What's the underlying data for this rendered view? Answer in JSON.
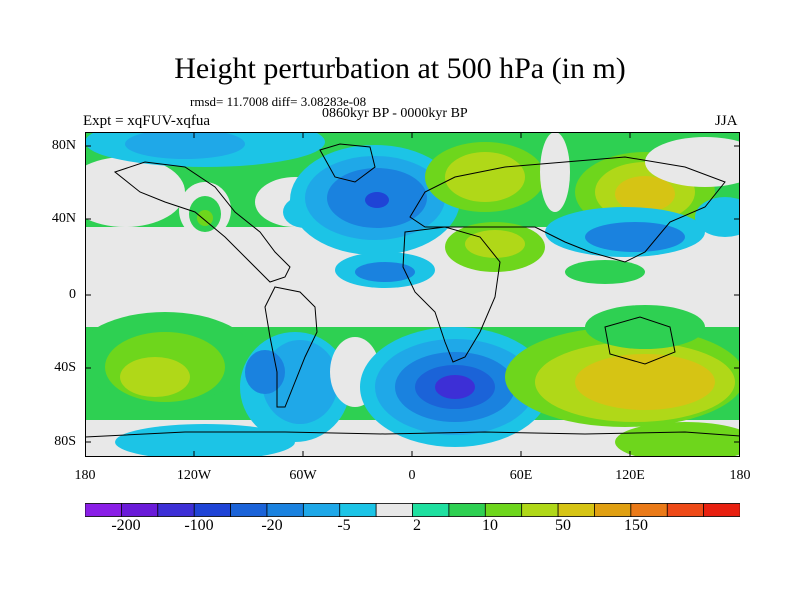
{
  "title": "Height perturbation at 500 hPa (in m)",
  "stats": "rmsd= 11.7008 diff= 3.08283e-08",
  "period": "0860kyr BP - 0000kyr BP",
  "experiment": "Expt = xqFUV-xqfua",
  "season": "JJA",
  "map": {
    "lat_labels": [
      "80N",
      "40N",
      "0",
      "40S",
      "80S"
    ],
    "lon_labels": [
      "180",
      "120W",
      "60W",
      "0",
      "60E",
      "120E",
      "180"
    ]
  },
  "colorbar": {
    "colors": [
      "#8a1fe6",
      "#6a1bd8",
      "#3d2fd6",
      "#1f44d6",
      "#1b63d8",
      "#1a82df",
      "#1fa8e8",
      "#1cc4e6",
      "#e8e8e8",
      "#1fe0a0",
      "#2ed052",
      "#6ed61c",
      "#b0d818",
      "#d6c414",
      "#e0a012",
      "#ea7a18",
      "#ee4a18",
      "#e82010"
    ],
    "labels": [
      "-200",
      "-100",
      "-20",
      "-5",
      "2",
      "10",
      "50",
      "150"
    ]
  }
}
